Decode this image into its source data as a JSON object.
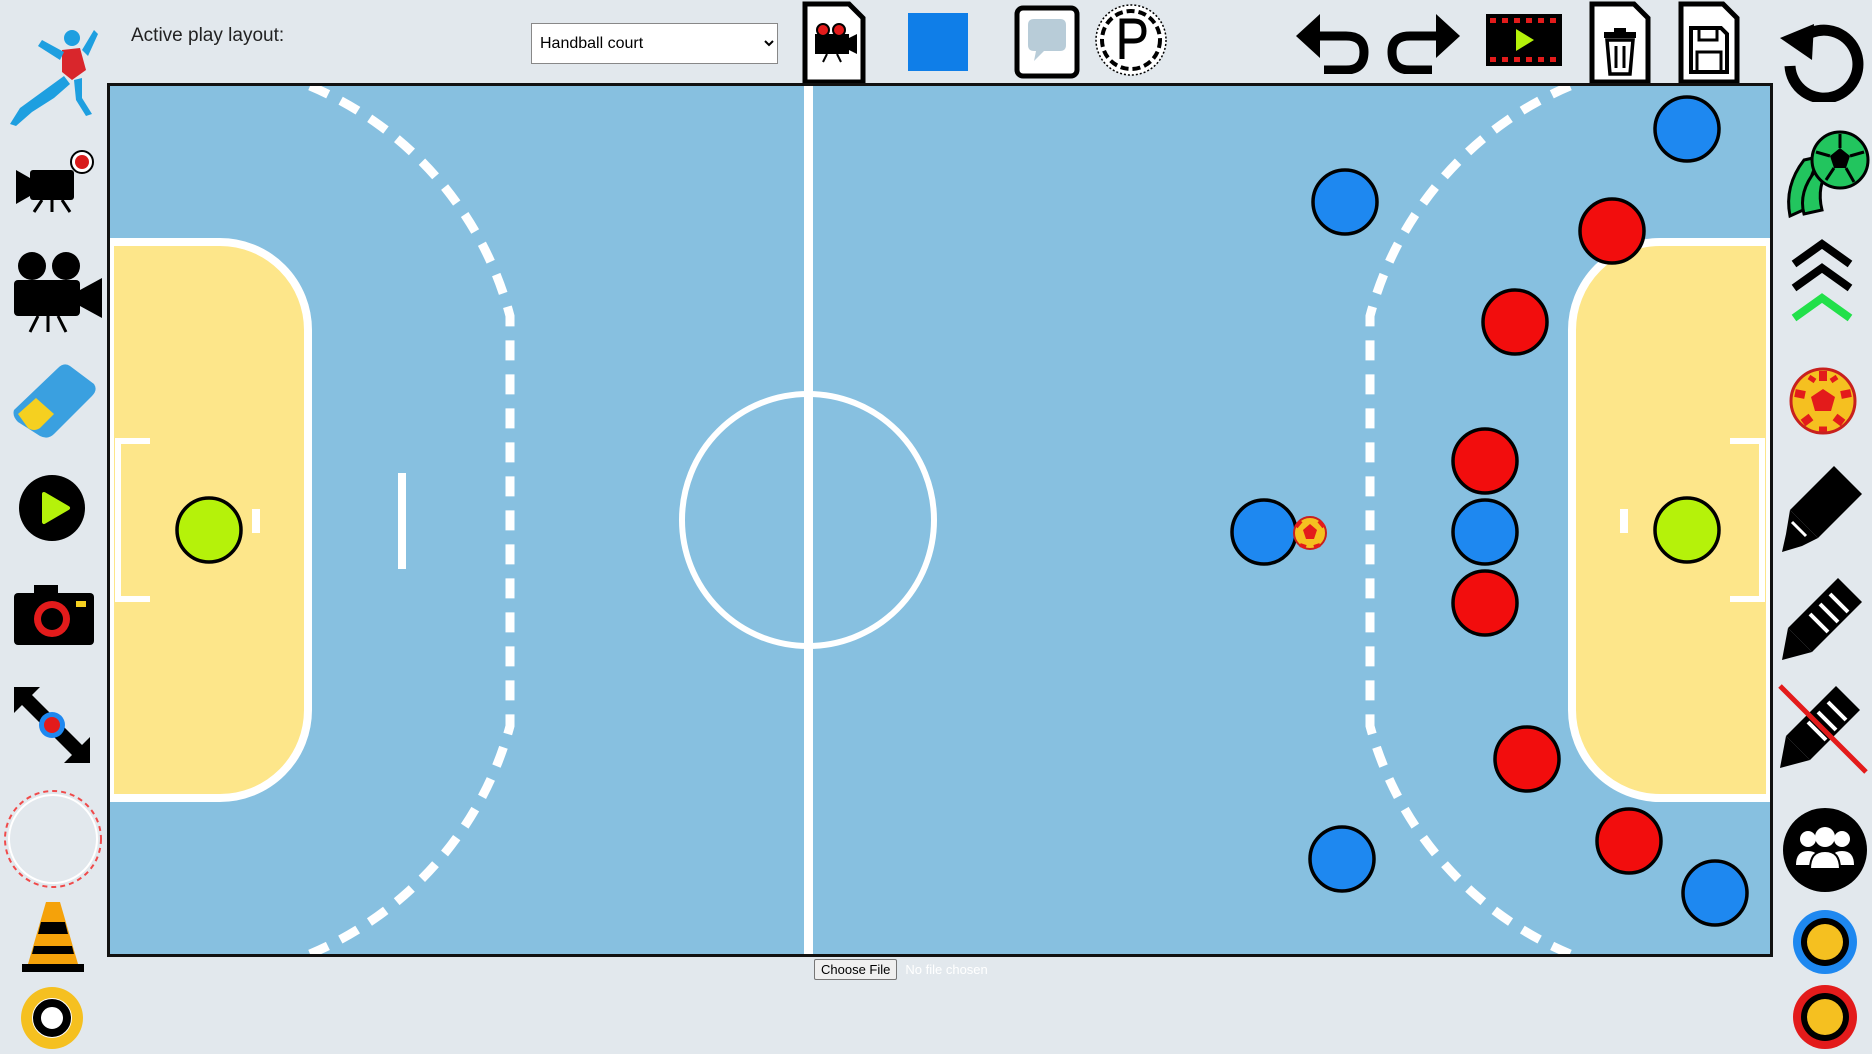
{
  "toolbar": {
    "layout_label": "Active play layout:",
    "layout_selected": "Handball court"
  },
  "file_input": {
    "button_label": "Choose File",
    "status": "No file chosen"
  },
  "colors": {
    "court": "#87c0e0",
    "goal_area": "#fde68a",
    "team_blue": "#1e88f0",
    "team_red": "#f20d0d",
    "goalkeeper": "#b5f20a",
    "color_swatch": "#0f7ee8"
  },
  "icons": {
    "left_sidebar": [
      "handball-player-logo-icon",
      "record-camera-icon",
      "movie-camera-icon",
      "eraser-icon",
      "play-icon",
      "photo-camera-icon",
      "resize-icon",
      "dashed-circle-icon",
      "cone-icon",
      "ring-icon"
    ],
    "top_bar": [
      "clipboard-camera-icon",
      "color-swatch-icon",
      "speech-bubble-icon",
      "parking-icon",
      "undo-icon",
      "redo-icon",
      "film-play-icon",
      "trash-icon",
      "save-icon"
    ],
    "right_sidebar": [
      "reset-icon",
      "soccer-ball-icon",
      "chevrons-up-icon",
      "handball-icon",
      "marker-icon",
      "pencil-icon",
      "pencil-off-icon",
      "team-icon",
      "blue-ring-icon",
      "red-ring-icon"
    ]
  }
}
